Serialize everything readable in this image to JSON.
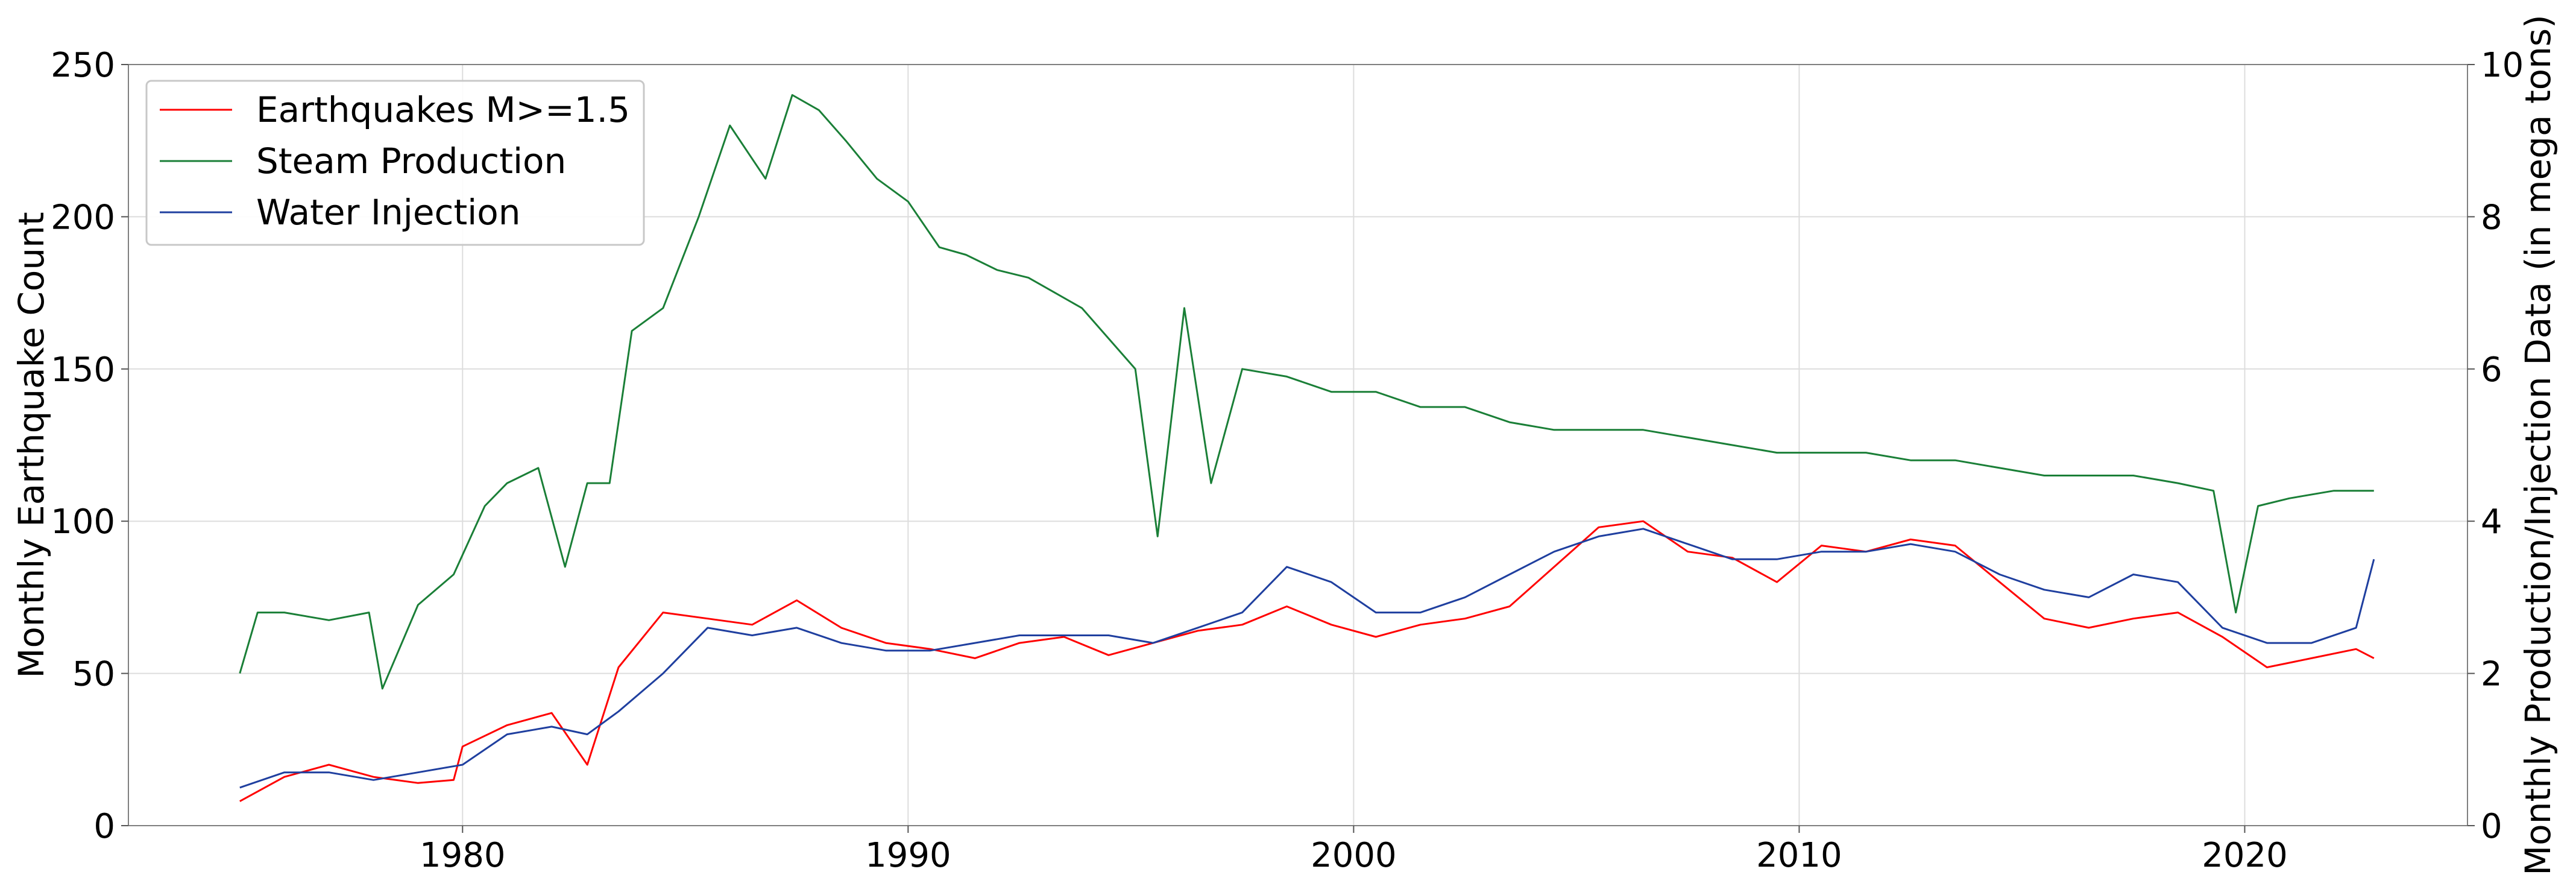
{
  "chart_data": {
    "type": "line",
    "title": "",
    "xlabel": "",
    "ylabel_left": "Monthly Earthquake Count",
    "ylabel_right": "Monthly Production/Injection Data (in mega tons)",
    "xlim": [
      1972.5,
      2025.0
    ],
    "ylim_left": [
      0,
      250
    ],
    "ylim_right": [
      0,
      10
    ],
    "x_ticks": [
      1980,
      1990,
      2000,
      2010,
      2020
    ],
    "y_ticks_left": [
      0,
      50,
      100,
      150,
      200,
      250
    ],
    "y_ticks_right": [
      0,
      2,
      4,
      6,
      8,
      10
    ],
    "grid": true,
    "legend_position": "top-left",
    "series": [
      {
        "name": "Earthquakes M>=1.5",
        "axis": "left",
        "color": "#ff0000",
        "x": [
          1975.0,
          1976.0,
          1977.0,
          1978.0,
          1979.0,
          1979.8,
          1980.0,
          1981.0,
          1982.0,
          1982.8,
          1983.5,
          1984.5,
          1985.5,
          1986.5,
          1987.5,
          1988.5,
          1989.5,
          1990.5,
          1991.5,
          1992.5,
          1993.5,
          1994.5,
          1995.5,
          1996.5,
          1997.5,
          1998.5,
          1999.5,
          2000.5,
          2001.5,
          2002.5,
          2003.5,
          2004.5,
          2005.5,
          2006.5,
          2007.5,
          2008.5,
          2009.5,
          2010.5,
          2011.5,
          2012.5,
          2013.5,
          2014.5,
          2015.5,
          2016.5,
          2017.5,
          2018.5,
          2019.5,
          2020.5,
          2021.5,
          2022.5,
          2022.9
        ],
        "values": [
          8,
          16,
          20,
          16,
          14,
          15,
          26,
          33,
          37,
          20,
          52,
          70,
          68,
          66,
          74,
          65,
          60,
          58,
          55,
          60,
          62,
          56,
          60,
          64,
          66,
          72,
          66,
          62,
          66,
          68,
          72,
          85,
          98,
          100,
          90,
          88,
          80,
          92,
          90,
          94,
          92,
          80,
          68,
          65,
          68,
          70,
          62,
          52,
          55,
          58,
          55
        ]
      },
      {
        "name": "Steam Production",
        "axis": "right",
        "color": "#1a7f37",
        "x": [
          1975.0,
          1975.4,
          1976.0,
          1977.0,
          1977.9,
          1978.2,
          1979.0,
          1979.8,
          1980.5,
          1981.0,
          1981.7,
          1982.3,
          1982.8,
          1983.3,
          1983.8,
          1984.5,
          1985.3,
          1986.0,
          1986.8,
          1987.4,
          1988.0,
          1988.6,
          1989.3,
          1990.0,
          1990.7,
          1991.3,
          1992.0,
          1992.7,
          1993.3,
          1993.9,
          1994.5,
          1995.1,
          1995.6,
          1996.2,
          1996.8,
          1997.5,
          1998.5,
          1999.5,
          2000.5,
          2001.5,
          2002.5,
          2003.5,
          2004.5,
          2005.5,
          2006.5,
          2007.5,
          2008.5,
          2009.5,
          2010.5,
          2011.5,
          2012.5,
          2013.5,
          2014.5,
          2015.5,
          2016.5,
          2017.5,
          2018.5,
          2019.3,
          2019.8,
          2020.3,
          2021.0,
          2022.0,
          2022.9
        ],
        "values": [
          2.0,
          2.8,
          2.8,
          2.7,
          2.8,
          1.8,
          2.9,
          3.3,
          4.2,
          4.5,
          4.7,
          3.4,
          4.5,
          4.5,
          6.5,
          6.8,
          8.0,
          9.2,
          8.5,
          9.6,
          9.4,
          9.0,
          8.5,
          8.2,
          7.6,
          7.5,
          7.3,
          7.2,
          7.0,
          6.8,
          6.4,
          6.0,
          3.8,
          6.8,
          4.5,
          6.0,
          5.9,
          5.7,
          5.7,
          5.5,
          5.5,
          5.3,
          5.2,
          5.2,
          5.2,
          5.1,
          5.0,
          4.9,
          4.9,
          4.9,
          4.8,
          4.8,
          4.7,
          4.6,
          4.6,
          4.6,
          4.5,
          4.4,
          2.8,
          4.2,
          4.3,
          4.4,
          4.4
        ]
      },
      {
        "name": "Water Injection",
        "axis": "right",
        "color": "#1f3f9f",
        "x": [
          1975.0,
          1976.0,
          1977.0,
          1978.0,
          1979.0,
          1980.0,
          1981.0,
          1982.0,
          1982.8,
          1983.5,
          1984.5,
          1985.5,
          1986.5,
          1987.5,
          1988.5,
          1989.5,
          1990.5,
          1991.5,
          1992.5,
          1993.5,
          1994.5,
          1995.5,
          1996.5,
          1997.5,
          1998.5,
          1999.5,
          2000.5,
          2001.5,
          2002.5,
          2003.5,
          2004.5,
          2005.5,
          2006.5,
          2007.5,
          2008.5,
          2009.5,
          2010.5,
          2011.5,
          2012.5,
          2013.5,
          2014.5,
          2015.5,
          2016.5,
          2017.5,
          2018.5,
          2019.5,
          2020.5,
          2021.5,
          2022.5,
          2022.9
        ],
        "values": [
          0.5,
          0.7,
          0.7,
          0.6,
          0.7,
          0.8,
          1.2,
          1.3,
          1.2,
          1.5,
          2.0,
          2.6,
          2.5,
          2.6,
          2.4,
          2.3,
          2.3,
          2.4,
          2.5,
          2.5,
          2.5,
          2.4,
          2.6,
          2.8,
          3.4,
          3.2,
          2.8,
          2.8,
          3.0,
          3.3,
          3.6,
          3.8,
          3.9,
          3.7,
          3.5,
          3.5,
          3.6,
          3.6,
          3.7,
          3.6,
          3.3,
          3.1,
          3.0,
          3.3,
          3.2,
          2.6,
          2.4,
          2.4,
          2.6,
          3.5
        ]
      }
    ]
  }
}
